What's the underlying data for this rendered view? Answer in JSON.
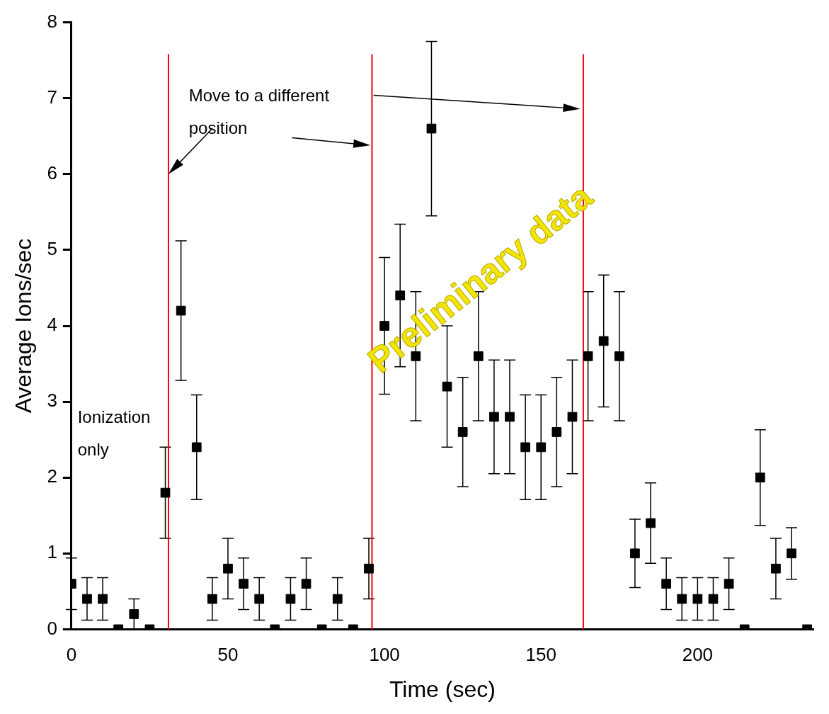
{
  "chart_data": {
    "type": "scatter",
    "xlabel": "Time (sec)",
    "ylabel": "Average Ions/sec",
    "x": [
      0,
      5,
      10,
      15,
      20,
      25,
      30,
      35,
      40,
      45,
      50,
      55,
      60,
      65,
      70,
      75,
      80,
      85,
      90,
      95,
      100,
      105,
      110,
      115,
      120,
      125,
      130,
      135,
      140,
      145,
      150,
      155,
      160,
      165,
      170,
      175,
      180,
      185,
      190,
      195,
      200,
      205,
      210,
      215,
      220,
      225,
      230,
      235
    ],
    "series": [
      {
        "color": "#000000",
        "values": [
          0.6,
          0.4,
          0.4,
          0,
          0.2,
          0,
          1.8,
          4.2,
          2.4,
          0.4,
          0.8,
          0.6,
          0.4,
          0,
          0.4,
          0.6,
          0,
          0.4,
          0,
          0.8,
          4.0,
          4.4,
          3.6,
          6.6,
          3.2,
          2.6,
          3.6,
          2.8,
          2.8,
          2.4,
          2.4,
          2.6,
          2.8,
          3.6,
          3.8,
          3.6,
          1.0,
          1.4,
          0.6,
          0.4,
          0.4,
          0.4,
          0.6,
          0,
          2.0,
          0.8,
          1.0,
          0
        ],
        "errors": [
          0.34,
          0.28,
          0.28,
          null,
          0.2,
          null,
          0.6,
          0.92,
          0.69,
          0.28,
          0.4,
          0.34,
          0.28,
          null,
          0.28,
          0.34,
          null,
          0.28,
          null,
          0.4,
          0.9,
          0.94,
          0.85,
          1.15,
          0.8,
          0.72,
          0.85,
          0.75,
          0.75,
          0.69,
          0.69,
          0.72,
          0.75,
          0.85,
          0.87,
          0.85,
          0.45,
          0.53,
          0.34,
          0.28,
          0.28,
          0.28,
          0.34,
          null,
          0.63,
          0.4,
          0.34,
          null
        ]
      }
    ],
    "marker": "square",
    "grid": false,
    "legend": false,
    "xlim": [
      0,
      237
    ],
    "xticks": [
      0,
      50,
      100,
      150,
      200
    ],
    "ylim": [
      0,
      8
    ],
    "yticks": [
      0,
      1,
      2,
      3,
      4,
      5,
      6,
      7,
      8
    ],
    "ref_lines": [
      {
        "axis": "x",
        "value": 31,
        "color": "#ff0000"
      },
      {
        "axis": "x",
        "value": 96,
        "color": "#ff0000"
      },
      {
        "axis": "x",
        "value": 163.5,
        "color": "#ff0000"
      }
    ],
    "annotations": [
      {
        "text": "Move to a different position",
        "x": 31,
        "y": 6
      },
      "Ionization only",
      "Preliminary data"
    ]
  }
}
